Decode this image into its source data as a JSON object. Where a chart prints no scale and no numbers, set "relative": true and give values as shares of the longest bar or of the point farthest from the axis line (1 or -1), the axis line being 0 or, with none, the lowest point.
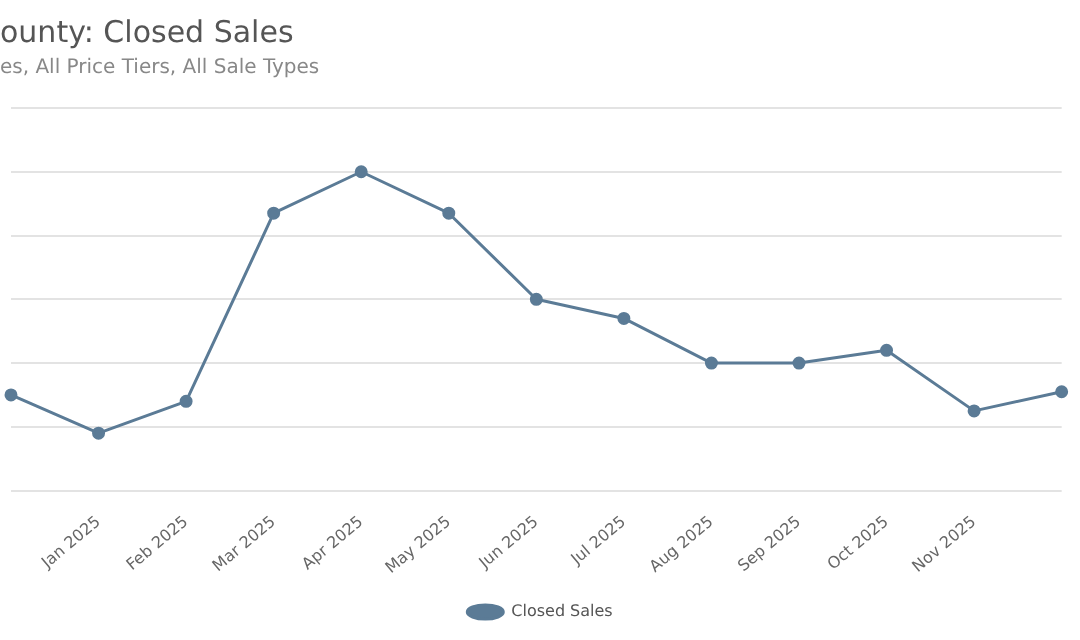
{
  "chart_data": {
    "type": "line",
    "title": "ounty: Closed Sales",
    "subtitle": "es, All Price Tiers, All Sale Types",
    "categories": [
      null,
      "Jan 2025",
      "Feb 2025",
      "Mar 2025",
      "Apr 2025",
      "May 2025",
      "Jun 2025",
      "Jul 2025",
      "Aug 2025",
      "Sep 2025",
      "Oct 2025",
      "Nov 2025",
      null
    ],
    "series": [
      {
        "name": "Closed Sales",
        "color": "#5b7b96",
        "values": [
          0.3,
          0.18,
          0.28,
          0.87,
          1,
          0.87,
          0.6,
          0.54,
          0.4,
          0.4,
          0.44,
          0.25,
          0.31
        ]
      }
    ],
    "relative": true,
    "grid": "y",
    "legend": "bottom",
    "marker": "circle",
    "line_style": "solid"
  }
}
